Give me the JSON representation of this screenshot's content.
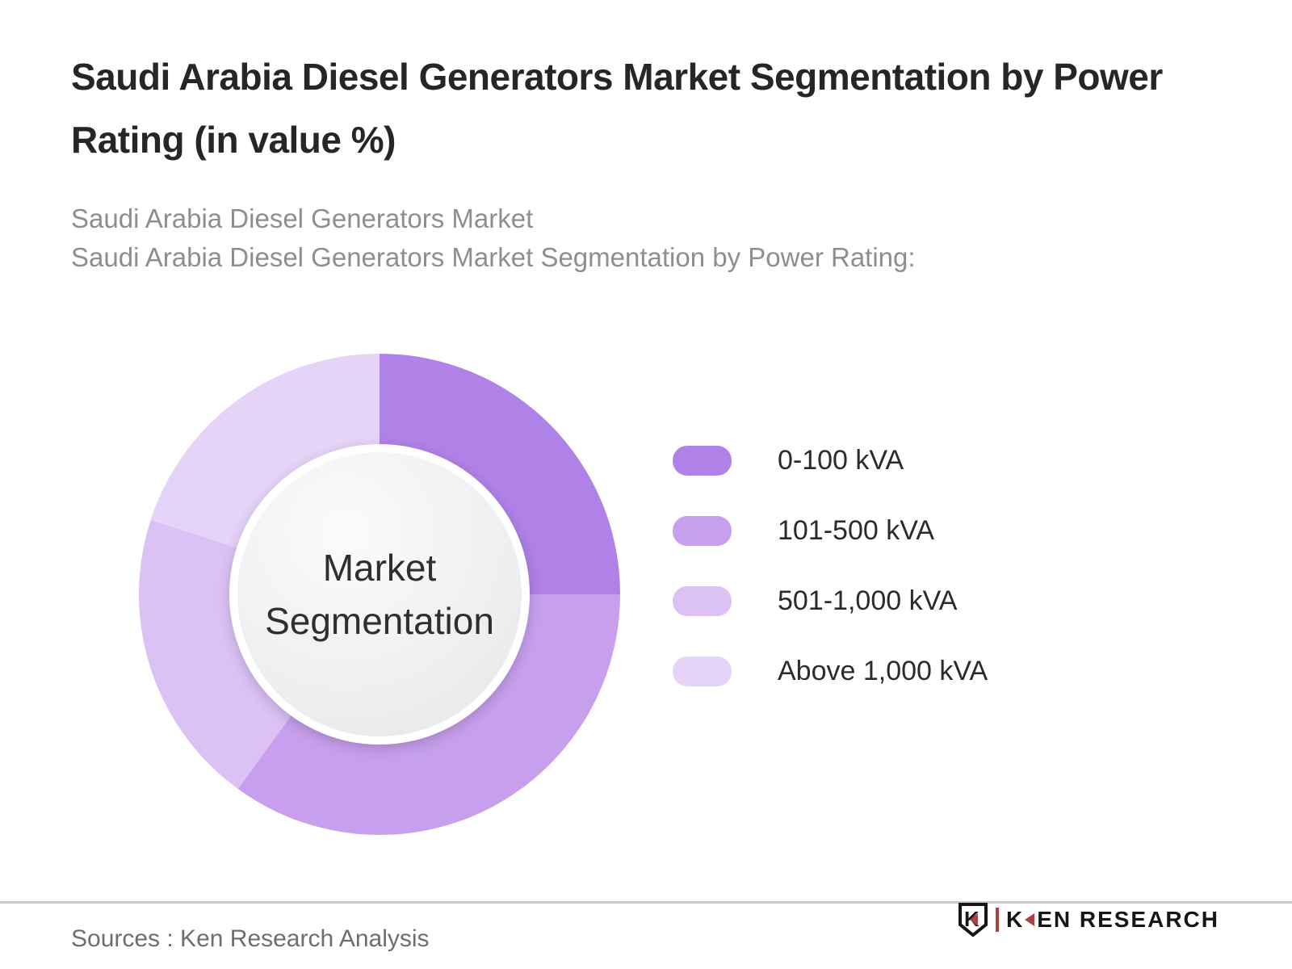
{
  "header": {
    "title": "Saudi Arabia Diesel Generators Market Segmentation by Power Rating (in value %)",
    "subtitle_line1": "Saudi Arabia Diesel Generators Market",
    "subtitle_line2": "Saudi Arabia Diesel Generators Market Segmentation by Power Rating:"
  },
  "chart_data": {
    "type": "pie",
    "subtype": "donut",
    "title": "Saudi Arabia Diesel Generators Market Segmentation by Power Rating (in value %)",
    "center_label": "Market Segmentation",
    "categories": [
      "0-100 kVA",
      "101-500 kVA",
      "501-1,000 kVA",
      "Above 1,000 kVA"
    ],
    "values": [
      25,
      35,
      20,
      20
    ],
    "unit": "% of market value (estimated from arc angles; slices are unlabeled)",
    "colors": [
      "#b081e6",
      "#c89fed",
      "#dcc2f4",
      "#e6d3f8"
    ],
    "start_angle_deg": 0,
    "direction": "clockwise",
    "legend_position": "right",
    "data_labels_shown": false
  },
  "footer": {
    "source": "Sources : Ken Research Analysis",
    "logo": {
      "emblem_letter": "K",
      "brand_first_letter": "K",
      "brand_rest": "EN RESEARCH",
      "accent_color": "#a94442"
    }
  }
}
